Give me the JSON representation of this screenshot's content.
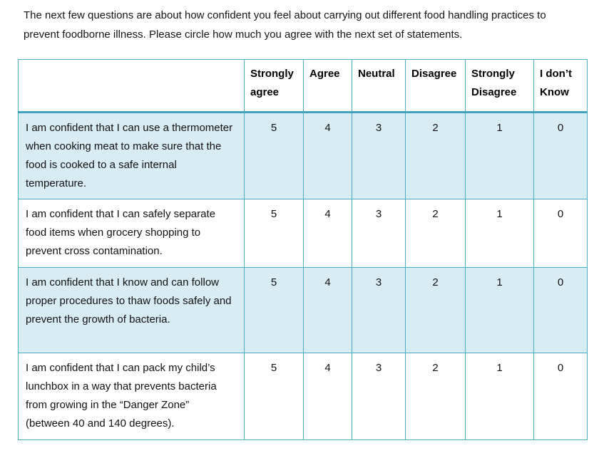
{
  "intro": "The next few questions are about how confident you feel about carrying out different food handling practices to prevent foodborne illness. Please circle how much you agree with the next set of statements.",
  "colors": {
    "border_teal": "#4bacc6",
    "header_rule_teal": "#3fa3c0",
    "band_blue": "#d8ecf4",
    "text": "#111111"
  },
  "table": {
    "columns": [
      "",
      "Strongly agree",
      "Agree",
      "Neutral",
      "Disagree",
      "Strongly Disagree",
      "I don’t Know"
    ],
    "rows": [
      {
        "statement": "I am confident that I can use a thermometer when cooking meat to make sure that the food is cooked to a safe internal temperature.",
        "values": [
          "5",
          "4",
          "3",
          "2",
          "1",
          "0"
        ]
      },
      {
        "statement": "I am confident that I can safely separate food items when grocery shopping to prevent cross contamination.",
        "values": [
          "5",
          "4",
          "3",
          "2",
          "1",
          "0"
        ]
      },
      {
        "statement": "I am confident that I know and can follow proper procedures to thaw foods safely and prevent the growth of bacteria.",
        "values": [
          "5",
          "4",
          "3",
          "2",
          "1",
          "0"
        ]
      },
      {
        "statement": "I am confident that I can pack my child’s lunchbox in a way that prevents bacteria from growing in the “Danger Zone” (between 40 and 140 degrees).",
        "values": [
          "5",
          "4",
          "3",
          "2",
          "1",
          "0"
        ]
      }
    ]
  }
}
